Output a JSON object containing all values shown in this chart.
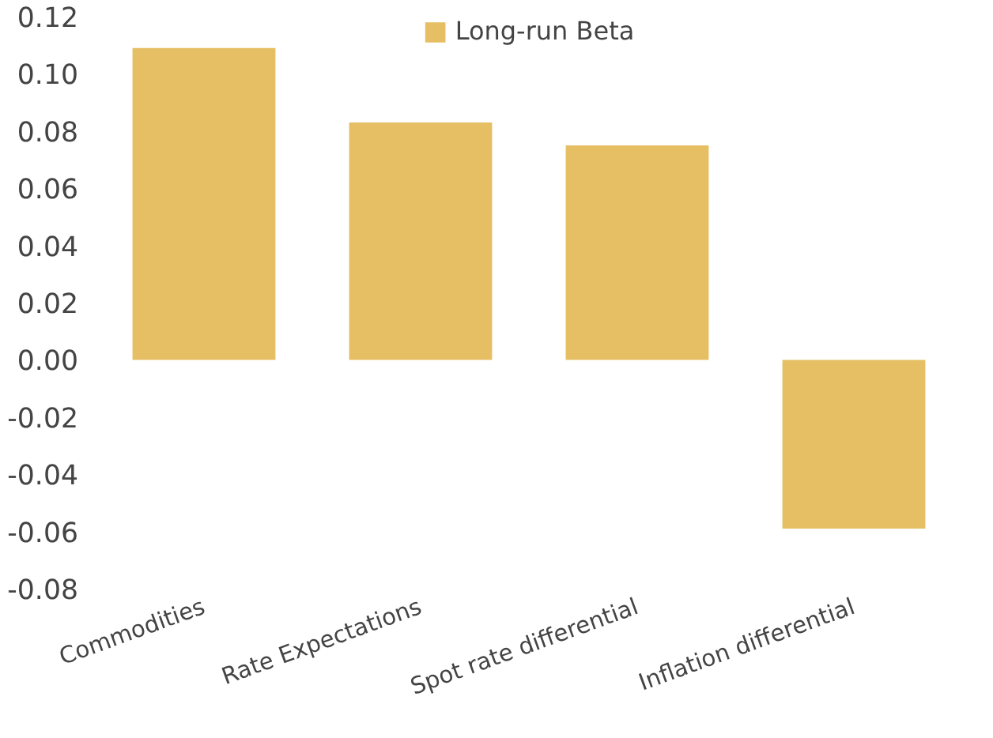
{
  "chart_data": {
    "type": "bar",
    "categories": [
      "Commodities",
      "Rate Expectations",
      "Spot rate differential",
      "Inflation differential"
    ],
    "series": [
      {
        "name": "Long-run Beta",
        "color": "#e6bf64",
        "values": [
          0.109,
          0.083,
          0.075,
          -0.059
        ]
      }
    ],
    "ylim": [
      -0.08,
      0.12
    ],
    "yticks": [
      -0.08,
      -0.06,
      -0.04,
      -0.02,
      {
        "value": 0,
        "label": "0.00"
      },
      0.02,
      0.04,
      0.06,
      0.08,
      {
        "value": 0.1,
        "label": "0.10"
      },
      0.12
    ],
    "grid": false,
    "legend": "top"
  }
}
